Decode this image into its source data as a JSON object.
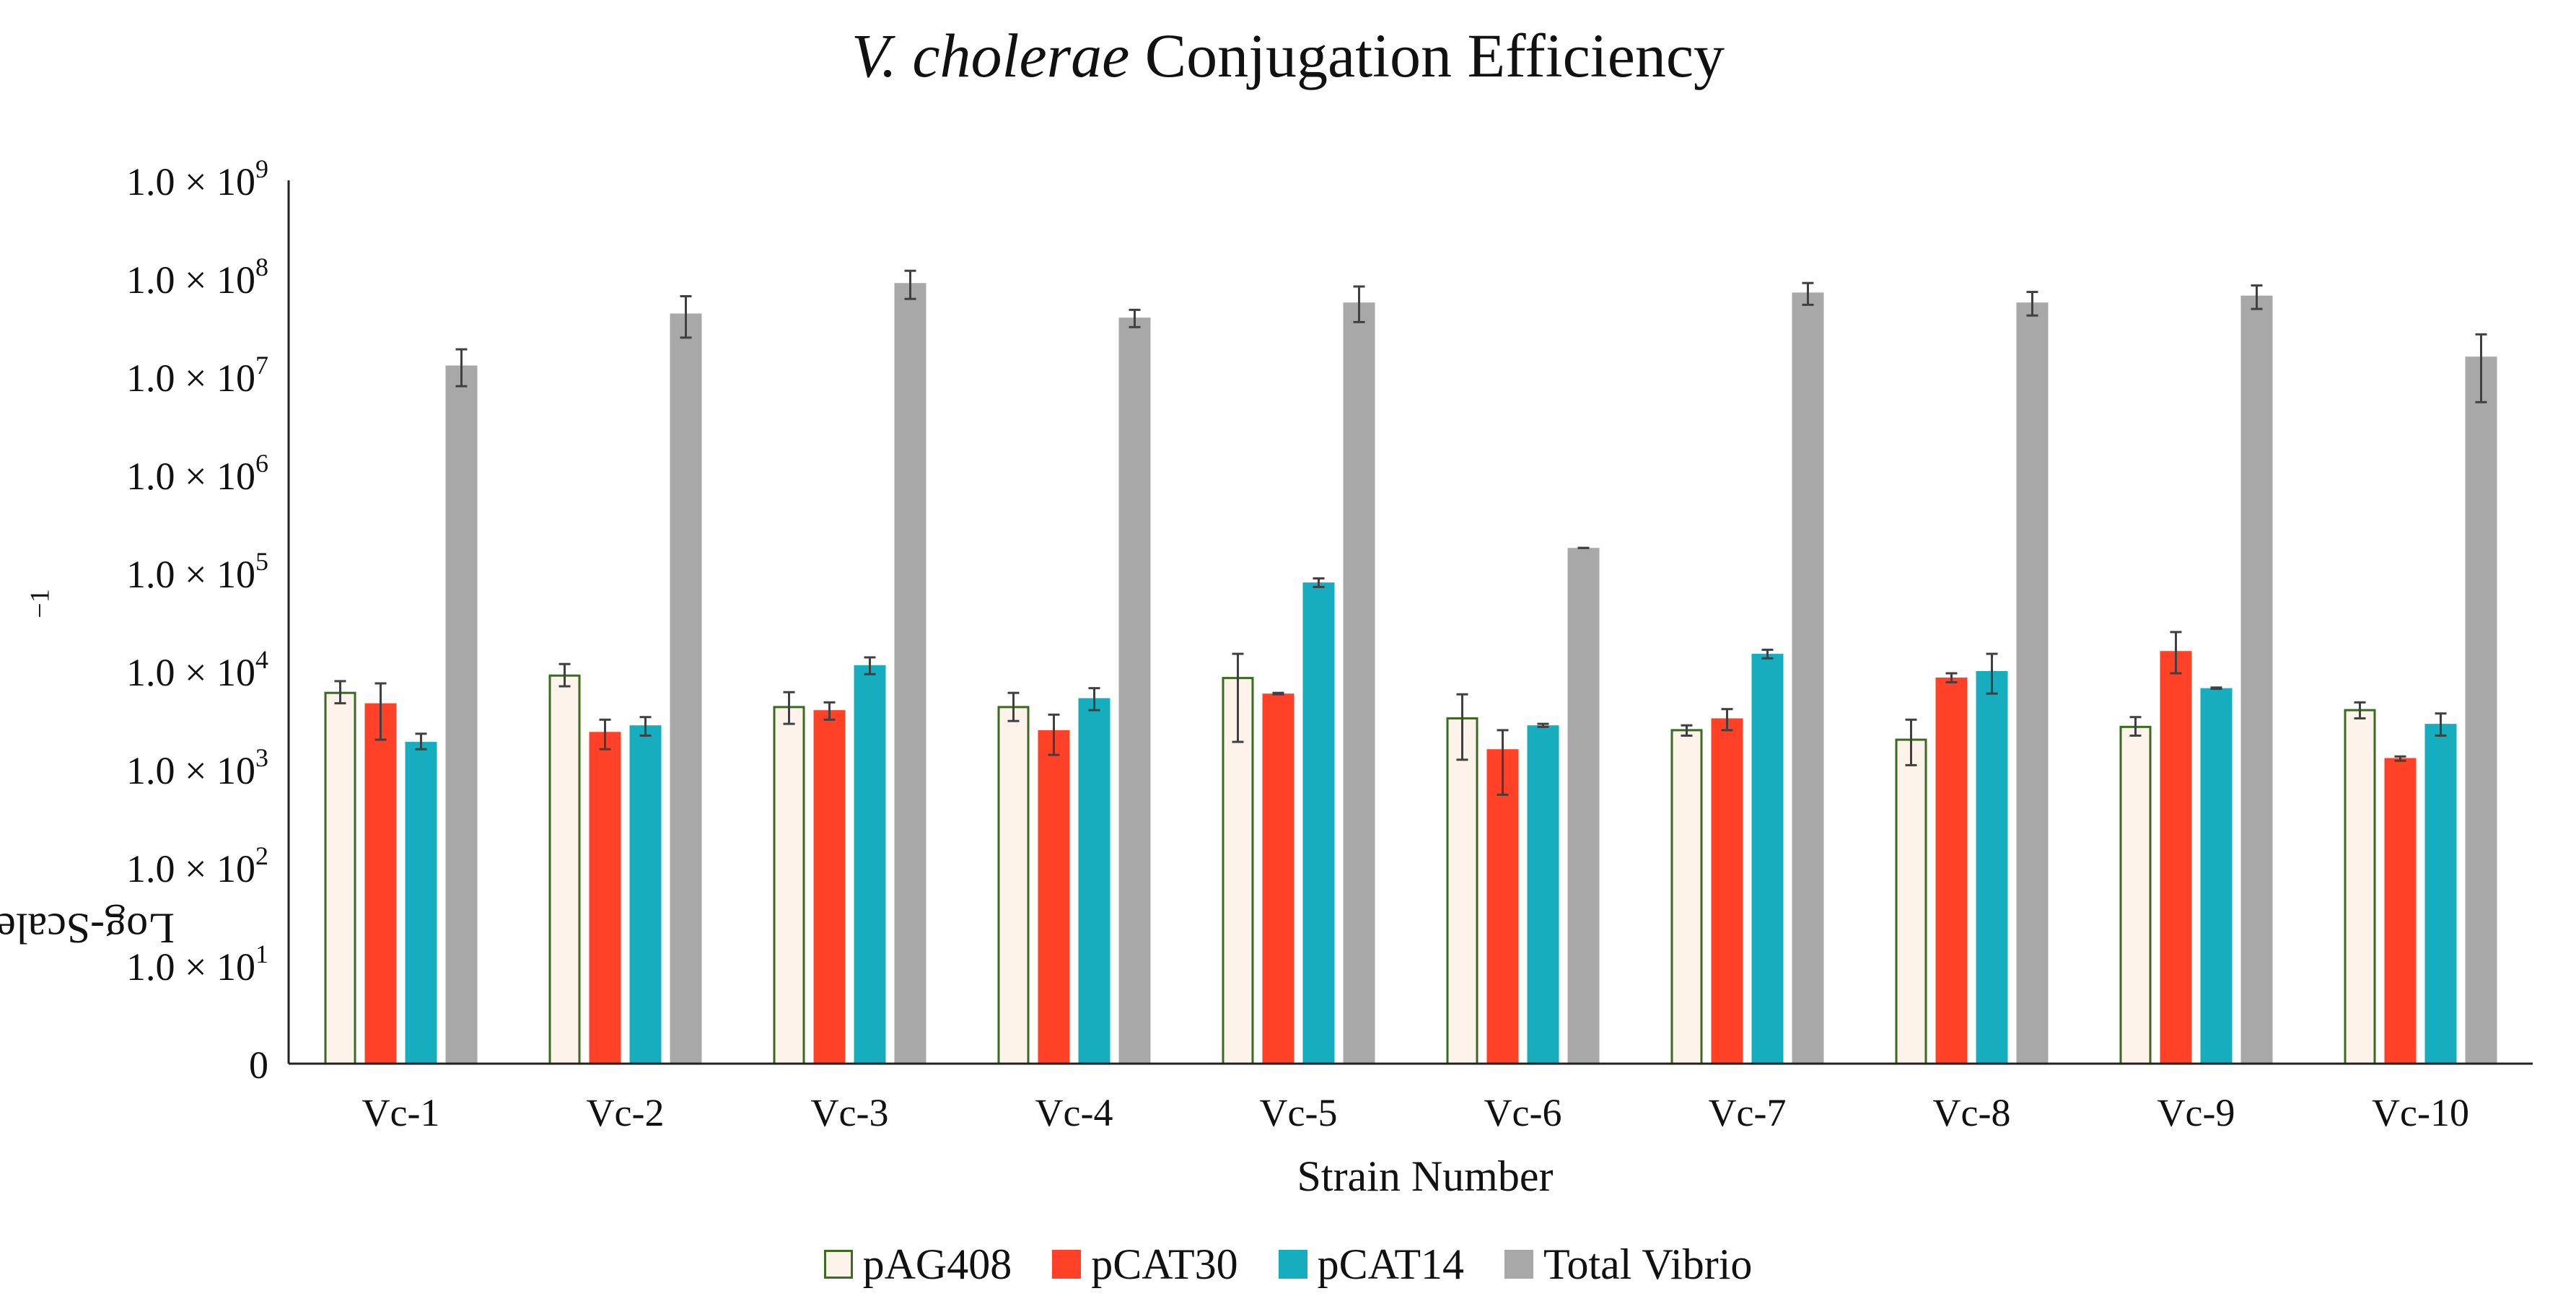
{
  "chart_data": {
    "type": "bar",
    "title_italic": "V. cholerae",
    "title_rest": " Conjugation Efficiency",
    "xlabel": "Strain Number",
    "ylabel_base": "Log-Scale CFU mL",
    "ylabel_sup": "−1",
    "yscale": "log",
    "ylim": [
      1,
      1000000000
    ],
    "yticks": [
      {
        "value": 1,
        "label": "0",
        "exp": ""
      },
      {
        "value": 10,
        "label": "1.0 × 10",
        "exp": "1"
      },
      {
        "value": 100,
        "label": "1.0 × 10",
        "exp": "2"
      },
      {
        "value": 1000,
        "label": "1.0 × 10",
        "exp": "3"
      },
      {
        "value": 10000,
        "label": "1.0 × 10",
        "exp": "4"
      },
      {
        "value": 100000,
        "label": "1.0 × 10",
        "exp": "5"
      },
      {
        "value": 1000000,
        "label": "1.0 × 10",
        "exp": "6"
      },
      {
        "value": 10000000,
        "label": "1.0 × 10",
        "exp": "7"
      },
      {
        "value": 100000000,
        "label": "1.0 × 10",
        "exp": "8"
      },
      {
        "value": 1000000000,
        "label": "1.0 × 10",
        "exp": "9"
      }
    ],
    "categories": [
      "Vc-1",
      "Vc-2",
      "Vc-3",
      "Vc-4",
      "Vc-5",
      "Vc-6",
      "Vc-7",
      "Vc-8",
      "Vc-9",
      "Vc-10"
    ],
    "series": [
      {
        "name": "pAG408",
        "fill": "#fdf3ea",
        "stroke": "#3a6b1e",
        "values": [
          6000,
          9000,
          4300,
          4300,
          8500,
          3300,
          2500,
          2000,
          2700,
          4000
        ],
        "err_low": [
          4700,
          7000,
          2900,
          3100,
          1900,
          1250,
          2200,
          1100,
          2200,
          3300
        ],
        "err_high": [
          7900,
          11800,
          6100,
          6000,
          15000,
          5800,
          2800,
          3200,
          3400,
          4800
        ]
      },
      {
        "name": "pCAT30",
        "fill": "#ff4127",
        "stroke": "#ff4127",
        "values": [
          4700,
          2400,
          4000,
          2500,
          5900,
          1600,
          3300,
          8600,
          16000,
          1300
        ],
        "err_low": [
          2000,
          1600,
          3200,
          1400,
          5800,
          550,
          2500,
          7700,
          9500,
          1220
        ],
        "err_high": [
          7500,
          3200,
          4800,
          3600,
          6000,
          2500,
          4100,
          9500,
          25000,
          1350
        ]
      },
      {
        "name": "pCAT14",
        "fill": "#16adbf",
        "stroke": "#16adbf",
        "values": [
          1900,
          2800,
          11500,
          5300,
          80000,
          2800,
          15000,
          10000,
          6700,
          2900
        ],
        "err_low": [
          1600,
          2200,
          9300,
          4000,
          72000,
          2700,
          13500,
          5900,
          6600,
          2200
        ],
        "err_high": [
          2300,
          3400,
          13800,
          6700,
          88000,
          2900,
          16500,
          15000,
          6800,
          3700
        ]
      },
      {
        "name": "Total Vibrio",
        "fill": "#a8a8a8",
        "stroke": "#a8a8a8",
        "values": [
          13000000,
          44000000,
          90000000,
          40000000,
          57000000,
          180000,
          72000000,
          57000000,
          67000000,
          16000000
        ],
        "err_low": [
          8000000,
          25000000,
          62000000,
          32000000,
          36000000,
          180000,
          54000000,
          42000000,
          49000000,
          5500000
        ],
        "err_high": [
          19000000,
          66000000,
          120000000,
          48000000,
          83000000,
          180000,
          90000000,
          73000000,
          85000000,
          27000000
        ]
      }
    ]
  }
}
